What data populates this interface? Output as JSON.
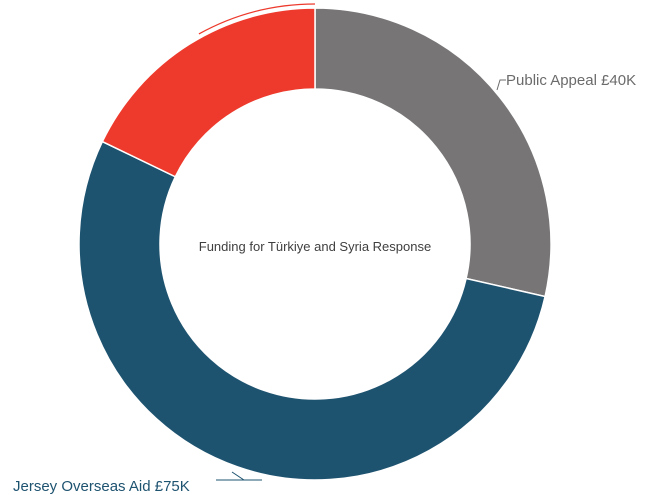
{
  "chart_data": {
    "type": "pie",
    "title": "Funding for Türkiye and Syria Response",
    "slices": [
      {
        "name": "Public Appeal",
        "value": 40,
        "label": "Public Appeal £40K",
        "color": "#777575"
      },
      {
        "name": "Jersey Overseas Aid",
        "value": 75,
        "label": "Jersey Overseas Aid £75K",
        "color": "#1e5370"
      },
      {
        "name": "",
        "value": 25,
        "label": "",
        "color": "#ed3a2c"
      }
    ],
    "units": "£K",
    "donut": true,
    "legend": "none"
  }
}
